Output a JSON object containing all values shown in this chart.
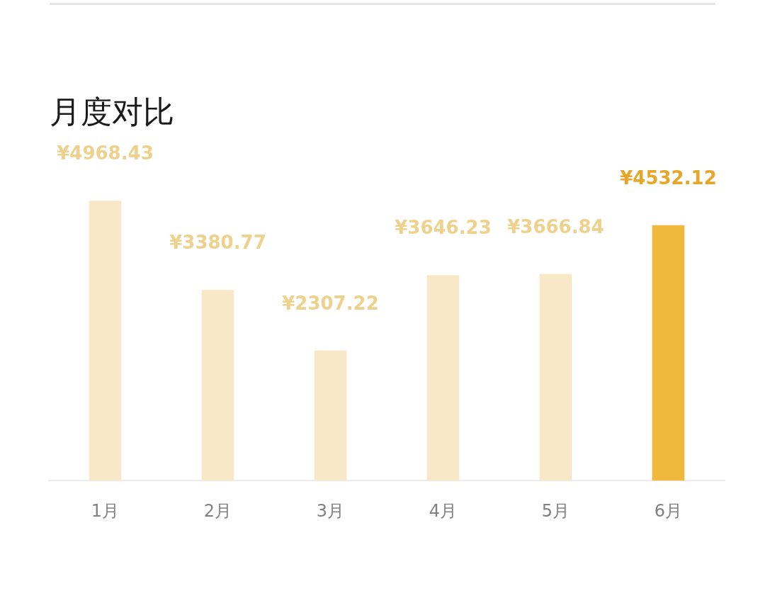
{
  "chart_data": {
    "type": "bar",
    "title": "月度对比",
    "categories": [
      "1月",
      "2月",
      "3月",
      "4月",
      "5月",
      "6月"
    ],
    "values": [
      4968.43,
      3380.77,
      2307.22,
      3646.23,
      3666.84,
      4532.12
    ],
    "colors": [
      "#f8e8c8",
      "#f8e8c8",
      "#f8e8c8",
      "#f8e8c8",
      "#f8e8c8",
      "#f0b83c"
    ],
    "value_labels": [
      "¥4968.43",
      "¥3380.77",
      "¥2307.22",
      "¥3646.23",
      "¥3666.84",
      "¥4532.12"
    ],
    "grid": false,
    "legend": false
  }
}
